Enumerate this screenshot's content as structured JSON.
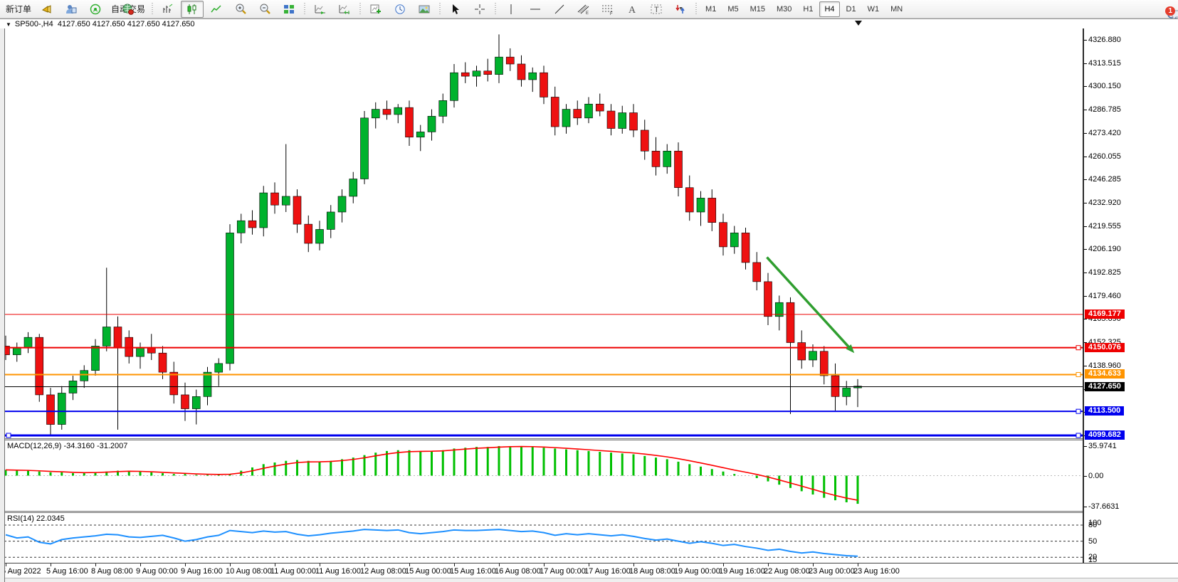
{
  "toolbar": {
    "new_order_label": "新订单",
    "autotrade_label": "自动交易",
    "timeframes": [
      "M1",
      "M5",
      "M15",
      "M30",
      "H1",
      "H4",
      "D1",
      "W1",
      "MN"
    ],
    "active_timeframe": "H4",
    "notification_badge": "1",
    "icons": [
      "alert-icon",
      "market-watch-icon",
      "signal-icon",
      "globe-icon",
      "bar-chart-icon",
      "candlestick-icon",
      "line-chart-icon",
      "zoom-in-icon",
      "zoom-out-icon",
      "tile-windows-icon",
      "auto-scroll-icon",
      "chart-shift-icon",
      "new-chart-icon",
      "period-clock-icon",
      "template-image-icon",
      "cursor-icon",
      "crosshair-icon",
      "vertical-line-icon",
      "horizontal-line-icon",
      "trendline-icon",
      "channel-icon",
      "fibonacci-icon",
      "text-icon",
      "label-icon",
      "shapes-icon",
      "search-icon",
      "chat-icon"
    ]
  },
  "chart": {
    "symbol_period": "SP500-,H4",
    "quotes": "4127.650 4127.650 4127.650 4127.650"
  },
  "price_axis": {
    "ticks": [
      "4326.880",
      "4313.515",
      "4300.150",
      "4286.785",
      "4273.420",
      "4260.055",
      "4246.285",
      "4232.920",
      "4219.555",
      "4206.190",
      "4192.825",
      "4179.460",
      "4165.690",
      "4152.325",
      "4138.960",
      "4125.595",
      "4112.230",
      "4098.865"
    ]
  },
  "levels": [
    {
      "value": 4169.177,
      "label": "4169.177",
      "color": "#ee0000",
      "width": 1,
      "handle_right": false,
      "handle_left": false
    },
    {
      "value": 4150.076,
      "label": "4150.076",
      "color": "#ee0000",
      "width": 2,
      "handle_right": true,
      "handle_left": false
    },
    {
      "value": 4134.633,
      "label": "4134.633",
      "color": "#ff9400",
      "width": 2,
      "handle_right": true,
      "handle_left": false
    },
    {
      "value": 4127.65,
      "label": "4127.650",
      "color": "#000000",
      "width": 1,
      "handle_right": false,
      "handle_left": false
    },
    {
      "value": 4113.5,
      "label": "4113.500",
      "color": "#0000ee",
      "width": 2,
      "handle_right": true,
      "handle_left": false
    },
    {
      "value": 4099.682,
      "label": "4099.682",
      "color": "#0000ee",
      "width": 3,
      "handle_right": true,
      "handle_left": true
    }
  ],
  "macd": {
    "label": "MACD(12,26,9) -34.3160 -31.2007",
    "axis_ticks": [
      "35.9741",
      "0.00",
      "-37.6631"
    ],
    "axis_values": [
      35.9741,
      0,
      -37.6631
    ]
  },
  "rsi": {
    "label": "RSI(14) 22.0345",
    "axis_ticks": [
      "100",
      "80",
      "50",
      "20",
      "15"
    ],
    "level_lines": [
      80,
      50,
      20
    ]
  },
  "time_axis": {
    "labels": [
      "5 Aug 2022",
      "5 Aug 16:00",
      "8 Aug 08:00",
      "9 Aug 00:00",
      "9 Aug 16:00",
      "10 Aug 08:00",
      "11 Aug 00:00",
      "11 Aug 16:00",
      "12 Aug 08:00",
      "15 Aug 00:00",
      "15 Aug 16:00",
      "16 Aug 08:00",
      "17 Aug 00:00",
      "17 Aug 16:00",
      "18 Aug 08:00",
      "19 Aug 00:00",
      "19 Aug 16:00",
      "22 Aug 08:00",
      "23 Aug 00:00",
      "23 Aug 16:00"
    ]
  },
  "colors": {
    "candle_up": "#00b22d",
    "candle_down": "#ee1111",
    "wick": "#000000",
    "macd_histogram": "#00c000",
    "macd_signal": "#ff0000",
    "rsi_line": "#1e90ff",
    "trend_arrow": "#2f9e2f"
  },
  "annotations": {
    "trend_arrow": {
      "from_bar": 67.9,
      "from_price": 4202,
      "to_bar": 75.7,
      "to_price": 4147
    }
  },
  "chart_data": {
    "type": "candlestick",
    "title": "SP500-,H4",
    "period": "H4",
    "price_range": [
      4092,
      4338
    ],
    "candles": [
      [
        4151,
        4157,
        4143,
        4146
      ],
      [
        4146,
        4153,
        4142,
        4150
      ],
      [
        4150,
        4159,
        4147,
        4156
      ],
      [
        4156,
        4158,
        4119,
        4123
      ],
      [
        4123,
        4127,
        4100,
        4106
      ],
      [
        4106,
        4128,
        4103,
        4124
      ],
      [
        4124,
        4134,
        4120,
        4131
      ],
      [
        4131,
        4140,
        4127,
        4137
      ],
      [
        4137,
        4155,
        4134,
        4151
      ],
      [
        4151,
        4196,
        4148,
        4162
      ],
      [
        4162,
        4168,
        4103,
        4150
      ],
      [
        4156,
        4160,
        4141,
        4145
      ],
      [
        4145,
        4153,
        4138,
        4150
      ],
      [
        4150,
        4158,
        4143,
        4147
      ],
      [
        4147,
        4151,
        4132,
        4136
      ],
      [
        4136,
        4142,
        4118,
        4123
      ],
      [
        4123,
        4130,
        4108,
        4115
      ],
      [
        4115,
        4126,
        4106,
        4122
      ],
      [
        4122,
        4139,
        4117,
        4136
      ],
      [
        4136,
        4144,
        4128,
        4141
      ],
      [
        4141,
        4221,
        4137,
        4216
      ],
      [
        4216,
        4227,
        4210,
        4223
      ],
      [
        4223,
        4229,
        4215,
        4219
      ],
      [
        4219,
        4243,
        4214,
        4239
      ],
      [
        4239,
        4245,
        4227,
        4232
      ],
      [
        4232,
        4267,
        4228,
        4237
      ],
      [
        4237,
        4241,
        4216,
        4221
      ],
      [
        4221,
        4226,
        4205,
        4210
      ],
      [
        4210,
        4223,
        4206,
        4218
      ],
      [
        4218,
        4232,
        4213,
        4228
      ],
      [
        4228,
        4241,
        4222,
        4237
      ],
      [
        4237,
        4251,
        4233,
        4247
      ],
      [
        4247,
        4286,
        4244,
        4282
      ],
      [
        4282,
        4291,
        4276,
        4287
      ],
      [
        4287,
        4292,
        4281,
        4284
      ],
      [
        4284,
        4290,
        4279,
        4288
      ],
      [
        4288,
        4292,
        4266,
        4271
      ],
      [
        4271,
        4278,
        4263,
        4274
      ],
      [
        4274,
        4287,
        4269,
        4283
      ],
      [
        4283,
        4296,
        4279,
        4292
      ],
      [
        4292,
        4313,
        4288,
        4308
      ],
      [
        4308,
        4314,
        4302,
        4306
      ],
      [
        4306,
        4312,
        4300,
        4309
      ],
      [
        4309,
        4316,
        4303,
        4307
      ],
      [
        4307,
        4330,
        4302,
        4317
      ],
      [
        4317,
        4322,
        4309,
        4313
      ],
      [
        4313,
        4318,
        4300,
        4304
      ],
      [
        4304,
        4311,
        4297,
        4308
      ],
      [
        4308,
        4312,
        4290,
        4294
      ],
      [
        4294,
        4300,
        4272,
        4277
      ],
      [
        4277,
        4290,
        4273,
        4287
      ],
      [
        4287,
        4292,
        4278,
        4282
      ],
      [
        4282,
        4294,
        4279,
        4290
      ],
      [
        4290,
        4296,
        4283,
        4286
      ],
      [
        4286,
        4290,
        4272,
        4276
      ],
      [
        4276,
        4289,
        4273,
        4285
      ],
      [
        4285,
        4290,
        4271,
        4275
      ],
      [
        4275,
        4281,
        4258,
        4263
      ],
      [
        4263,
        4271,
        4249,
        4254
      ],
      [
        4254,
        4267,
        4250,
        4263
      ],
      [
        4263,
        4268,
        4237,
        4242
      ],
      [
        4242,
        4249,
        4223,
        4228
      ],
      [
        4228,
        4240,
        4220,
        4236
      ],
      [
        4236,
        4241,
        4217,
        4222
      ],
      [
        4222,
        4227,
        4203,
        4208
      ],
      [
        4208,
        4220,
        4204,
        4216
      ],
      [
        4216,
        4219,
        4195,
        4199
      ],
      [
        4199,
        4205,
        4183,
        4188
      ],
      [
        4188,
        4193,
        4163,
        4168
      ],
      [
        4168,
        4180,
        4160,
        4176
      ],
      [
        4176,
        4179,
        4112,
        4153
      ],
      [
        4153,
        4160,
        4138,
        4143
      ],
      [
        4143,
        4152,
        4139,
        4148
      ],
      [
        4148,
        4151,
        4129,
        4134
      ],
      [
        4134,
        4141,
        4114,
        4122
      ],
      [
        4122,
        4131,
        4117,
        4127
      ],
      [
        4127,
        4132,
        4116,
        4128
      ]
    ],
    "macd_histogram": [
      7,
      6,
      6,
      5,
      4,
      4,
      3,
      3,
      4,
      5,
      6,
      6,
      5,
      4,
      3,
      2,
      2,
      1,
      1,
      1,
      2,
      6,
      10,
      14,
      16,
      18,
      19,
      18,
      17,
      18,
      20,
      22,
      25,
      28,
      30,
      31,
      31,
      30,
      30,
      31,
      33,
      34,
      35,
      35,
      36,
      36,
      36,
      35,
      34,
      33,
      32,
      31,
      30,
      29,
      28,
      27,
      26,
      24,
      22,
      20,
      17,
      14,
      11,
      8,
      5,
      2,
      0,
      -3,
      -7,
      -11,
      -15,
      -19,
      -23,
      -27,
      -30,
      -32.5,
      -34.3
    ],
    "rsi_values": [
      62,
      56,
      58,
      48,
      45,
      53,
      56,
      58,
      60,
      63,
      62,
      58,
      57,
      59,
      61,
      56,
      50,
      53,
      58,
      61,
      70,
      68,
      66,
      69,
      67,
      68,
      63,
      60,
      62,
      65,
      67,
      69,
      72,
      71,
      70,
      71,
      66,
      64,
      66,
      68,
      71,
      70,
      70,
      71,
      72,
      70,
      68,
      69,
      66,
      61,
      64,
      62,
      64,
      62,
      60,
      62,
      59,
      55,
      52,
      54,
      50,
      46,
      49,
      46,
      42,
      44,
      40,
      37,
      33,
      35,
      31,
      28,
      30,
      27,
      25,
      23,
      22
    ],
    "macd_last": -34.316,
    "macd_signal_last": -31.2007,
    "rsi_last": 22.0345
  }
}
